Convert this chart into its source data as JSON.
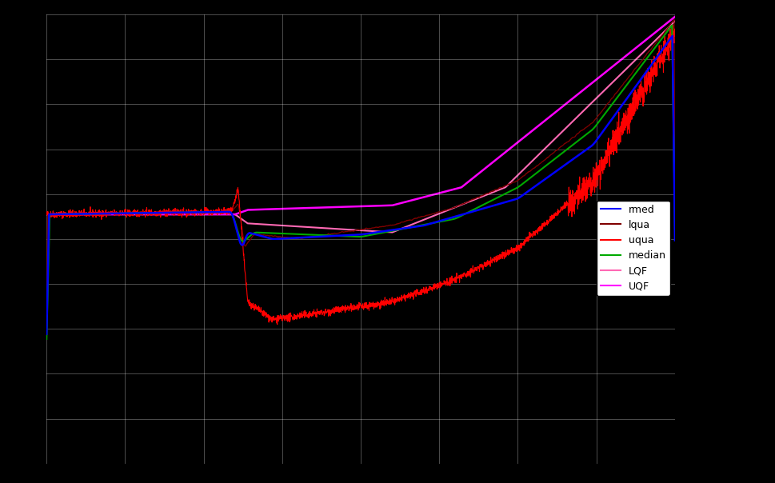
{
  "background_color": "#000000",
  "grid_color": "#ffffff",
  "grid_alpha": 0.35,
  "figsize": [
    9.7,
    6.04
  ],
  "dpi": 100,
  "legend_labels": [
    "rmed",
    "lqua",
    "uqua",
    "median",
    "LQF",
    "UQF"
  ],
  "legend_colors": [
    "#0000ff",
    "#800000",
    "#ff0000",
    "#00aa00",
    "#ff69b4",
    "#ff00ff"
  ],
  "n_gridx": 8,
  "n_gridy": 10
}
